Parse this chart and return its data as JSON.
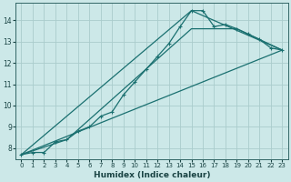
{
  "xlabel": "Humidex (Indice chaleur)",
  "bg_color": "#cce8e8",
  "grid_color": "#aacccc",
  "line_color": "#1a7070",
  "xlim": [
    -0.5,
    23.5
  ],
  "ylim": [
    7.5,
    14.8
  ],
  "xticks": [
    0,
    1,
    2,
    3,
    4,
    5,
    6,
    7,
    8,
    9,
    10,
    11,
    12,
    13,
    14,
    15,
    16,
    17,
    18,
    19,
    20,
    21,
    22,
    23
  ],
  "yticks": [
    8,
    9,
    10,
    11,
    12,
    13,
    14
  ],
  "series1": [
    [
      0,
      7.7
    ],
    [
      1,
      7.8
    ],
    [
      2,
      7.8
    ],
    [
      3,
      8.3
    ],
    [
      4,
      8.4
    ],
    [
      5,
      8.8
    ],
    [
      6,
      9.0
    ],
    [
      7,
      9.5
    ],
    [
      8,
      9.7
    ],
    [
      9,
      10.5
    ],
    [
      10,
      11.1
    ],
    [
      11,
      11.7
    ],
    [
      12,
      12.3
    ],
    [
      13,
      12.9
    ],
    [
      14,
      13.7
    ],
    [
      15,
      14.45
    ],
    [
      16,
      14.45
    ],
    [
      17,
      13.7
    ],
    [
      18,
      13.8
    ],
    [
      19,
      13.6
    ],
    [
      20,
      13.35
    ],
    [
      21,
      13.1
    ],
    [
      22,
      12.7
    ],
    [
      23,
      12.6
    ]
  ],
  "series2": [
    [
      0,
      7.7
    ],
    [
      23,
      12.6
    ]
  ],
  "series3": [
    [
      0,
      7.7
    ],
    [
      15,
      14.45
    ],
    [
      23,
      12.6
    ]
  ],
  "series4": [
    [
      0,
      7.7
    ],
    [
      4,
      8.4
    ],
    [
      15,
      13.6
    ],
    [
      19,
      13.6
    ],
    [
      23,
      12.6
    ]
  ]
}
